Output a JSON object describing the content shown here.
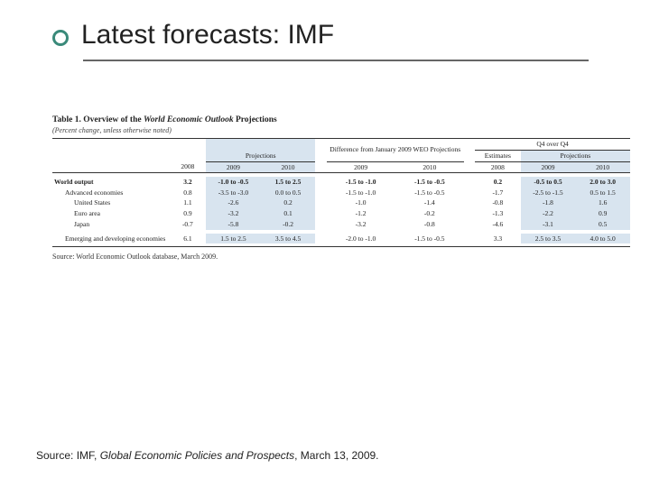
{
  "slide": {
    "title": "Latest forecasts: IMF",
    "bullet_color": "#3a8a7a",
    "rule_color": "#666666"
  },
  "table": {
    "caption_prefix": "Table 1. Overview of the ",
    "caption_italic": "World Economic Outlook",
    "caption_suffix": " Projections",
    "subtitle": "(Percent change, unless otherwise noted)",
    "group_headers": {
      "g1": "",
      "g2": "Projections",
      "g3": "Difference from January 2009 WEO Projections",
      "g4": "Q4 over Q4",
      "g4a": "Estimates",
      "g4b": "Projections"
    },
    "years": {
      "c1": "2008",
      "c2": "2009",
      "c3": "2010",
      "c4": "2009",
      "c5": "2010",
      "c6": "2008",
      "c7": "2009",
      "c8": "2010"
    },
    "rows": [
      {
        "label": "World output",
        "bold": true,
        "indent": 0,
        "v": [
          "3.2",
          "-1.0 to -0.5",
          "1.5 to 2.5",
          "-1.5 to -1.0",
          "-1.5 to -0.5",
          "0.2",
          "-0.5 to 0.5",
          "2.0 to 3.0"
        ]
      },
      {
        "label": "Advanced economies",
        "bold": false,
        "indent": 1,
        "v": [
          "0.8",
          "-3.5 to -3.0",
          "0.0 to 0.5",
          "-1.5 to -1.0",
          "-1.5 to -0.5",
          "-1.7",
          "-2.5 to -1.5",
          "0.5 to 1.5"
        ]
      },
      {
        "label": "United States",
        "bold": false,
        "indent": 2,
        "v": [
          "1.1",
          "-2.6",
          "0.2",
          "-1.0",
          "-1.4",
          "-0.8",
          "-1.8",
          "1.6"
        ]
      },
      {
        "label": "Euro area",
        "bold": false,
        "indent": 2,
        "v": [
          "0.9",
          "-3.2",
          "0.1",
          "-1.2",
          "-0.2",
          "-1.3",
          "-2.2",
          "0.9"
        ]
      },
      {
        "label": "Japan",
        "bold": false,
        "indent": 2,
        "v": [
          "-0.7",
          "-5.8",
          "-0.2",
          "-3.2",
          "-0.8",
          "-4.6",
          "-3.1",
          "0.5"
        ]
      },
      {
        "label": "Emerging and developing economies",
        "bold": false,
        "indent": 1,
        "v": [
          "6.1",
          "1.5 to 2.5",
          "3.5 to 4.5",
          "-2.0 to -1.0",
          "-1.5 to -0.5",
          "3.3",
          "2.5 to 3.5",
          "4.0 to 5.0"
        ]
      }
    ],
    "highlight_columns": [
      2,
      3,
      7,
      8
    ],
    "highlight_color": "#d8e4ef",
    "source_line": "Source: World Economic Outlook database, March 2009."
  },
  "footer": {
    "prefix": "Source: IMF, ",
    "italic": "Global Economic Policies and Prospects",
    "suffix": ", March 13, 2009."
  }
}
